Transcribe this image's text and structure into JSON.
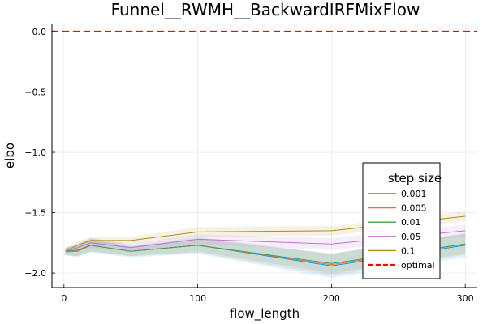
{
  "chart_data": {
    "type": "line",
    "title": "Funnel__RWMH__BackwardIRFMixFlow",
    "xlabel": "flow_length",
    "ylabel": "elbo",
    "xlim": [
      -9,
      309
    ],
    "ylim": [
      -2.12,
      0.06
    ],
    "xticks": [
      0,
      100,
      200,
      300
    ],
    "xtick_labels": [
      "0",
      "100",
      "200",
      "300"
    ],
    "yticks": [
      0.0,
      -0.5,
      -1.0,
      -1.5,
      -2.0
    ],
    "ytick_labels": [
      "0.0",
      "−0.5",
      "−1.0",
      "−1.5",
      "−2.0"
    ],
    "grid": true,
    "legend": {
      "title": "step size",
      "position": "bottom-right"
    },
    "x": [
      1,
      10,
      20,
      50,
      100,
      200,
      300
    ],
    "series": [
      {
        "name": "0.001",
        "color": "#009AFA",
        "values": [
          -1.82,
          -1.82,
          -1.77,
          -1.82,
          -1.77,
          -1.94,
          -1.77
        ],
        "lower": [
          -1.85,
          -1.87,
          -1.83,
          -1.87,
          -1.84,
          -2.04,
          -1.87
        ],
        "upper": [
          -1.79,
          -1.77,
          -1.71,
          -1.77,
          -1.7,
          -1.84,
          -1.67
        ]
      },
      {
        "name": "0.005",
        "color": "#E36F47",
        "values": [
          -1.82,
          -1.82,
          -1.77,
          -1.82,
          -1.77,
          -1.93,
          -1.76
        ],
        "lower": [
          -1.85,
          -1.86,
          -1.82,
          -1.86,
          -1.83,
          -2.02,
          -1.85
        ],
        "upper": [
          -1.79,
          -1.78,
          -1.72,
          -1.78,
          -1.71,
          -1.84,
          -1.67
        ]
      },
      {
        "name": "0.01",
        "color": "#3EA44E",
        "values": [
          -1.82,
          -1.81,
          -1.77,
          -1.82,
          -1.77,
          -1.92,
          -1.76
        ],
        "lower": [
          -1.85,
          -1.86,
          -1.82,
          -1.86,
          -1.82,
          -2.0,
          -1.84
        ],
        "upper": [
          -1.79,
          -1.76,
          -1.72,
          -1.78,
          -1.72,
          -1.84,
          -1.68
        ]
      },
      {
        "name": "0.05",
        "color": "#C371D2",
        "values": [
          -1.82,
          -1.79,
          -1.75,
          -1.79,
          -1.72,
          -1.76,
          -1.65
        ],
        "lower": [
          -1.84,
          -1.82,
          -1.79,
          -1.82,
          -1.76,
          -1.81,
          -1.7
        ],
        "upper": [
          -1.8,
          -1.76,
          -1.71,
          -1.76,
          -1.68,
          -1.71,
          -1.6
        ]
      },
      {
        "name": "0.1",
        "color": "#AC8D18",
        "values": [
          -1.82,
          -1.77,
          -1.73,
          -1.73,
          -1.66,
          -1.65,
          -1.53
        ],
        "lower": [
          -1.84,
          -1.8,
          -1.76,
          -1.76,
          -1.7,
          -1.69,
          -1.57
        ],
        "upper": [
          -1.8,
          -1.74,
          -1.7,
          -1.7,
          -1.62,
          -1.61,
          -1.49
        ]
      }
    ],
    "reference_line": {
      "name": "optimal",
      "y": 0.0,
      "color": "#FF0000",
      "style": "dashed"
    }
  }
}
